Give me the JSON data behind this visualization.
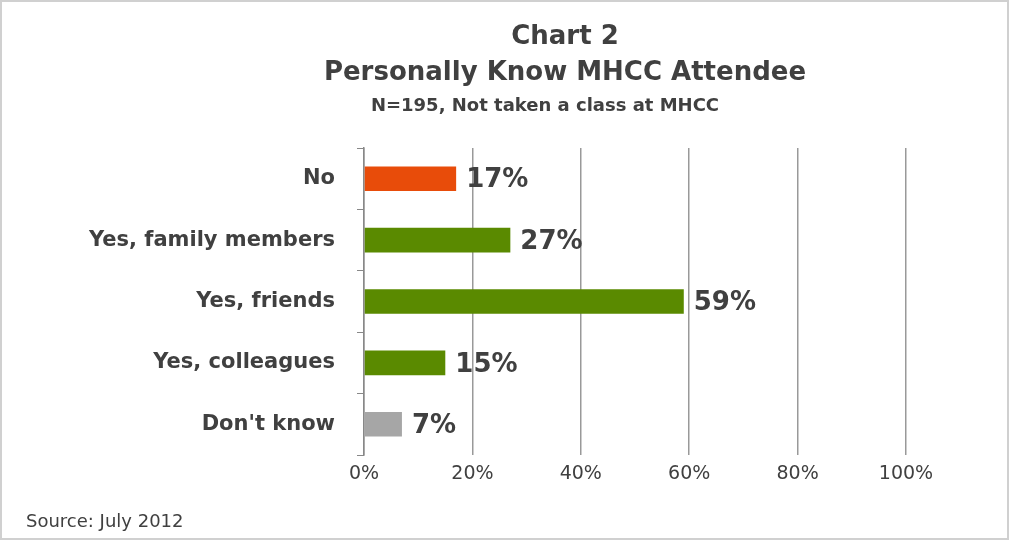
{
  "chart_data": {
    "type": "bar",
    "orientation": "horizontal",
    "title": "Chart 2",
    "subtitle": "Personally Know MHCC Attendee",
    "annotations": [
      "N=195, Not taken a class at MHCC",
      "Source: July 2012"
    ],
    "categories": [
      "No",
      "Yes, family members",
      "Yes, friends",
      "Yes, colleagues",
      "Don't know"
    ],
    "values": [
      17,
      27,
      59,
      15,
      7
    ],
    "colors": [
      "#e84c0a",
      "#5a8a00",
      "#5a8a00",
      "#5a8a00",
      "#a6a6a6"
    ],
    "value_labels": [
      "17%",
      "27%",
      "59%",
      "15%",
      "7%"
    ],
    "xlim": [
      0,
      100
    ],
    "xticks": [
      {
        "value": 0,
        "label": "0%"
      },
      {
        "value": 20,
        "label": "20%"
      },
      {
        "value": 40,
        "label": "40%"
      },
      {
        "value": 60,
        "label": "60%"
      },
      {
        "value": 80,
        "label": "80%"
      },
      {
        "value": 100,
        "label": "100%"
      }
    ],
    "grid": "x",
    "legend": false
  }
}
